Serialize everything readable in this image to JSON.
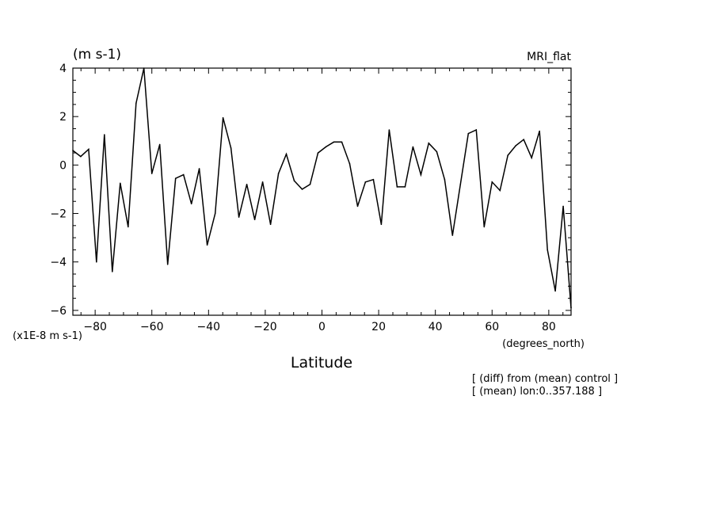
{
  "chart_data": {
    "type": "line",
    "title": "",
    "model_label": "MRI_flat",
    "ylabel_unit": "(m s-1)",
    "y_scale_note": "(x1E-8 m s-1)",
    "xlabel": "Latitude",
    "x_unit": "(degrees_north)",
    "annotations": [
      "[ (diff) from (mean) control ]",
      "[ (mean) lon:0..357.188 ]"
    ],
    "xlim": [
      -87.86,
      87.86
    ],
    "ylim": [
      -6.2,
      4.0
    ],
    "x_ticks": [
      -80,
      -60,
      -40,
      -20,
      0,
      20,
      40,
      60,
      80
    ],
    "x_tick_labels": [
      "−80",
      "−60",
      "−40",
      "−20",
      "0",
      "20",
      "40",
      "60",
      "80"
    ],
    "y_ticks": [
      -6,
      -4,
      -2,
      0,
      2,
      4
    ],
    "y_tick_labels": [
      "−6",
      "−4",
      "−2",
      "0",
      "2",
      "4"
    ],
    "grid": false,
    "series": [
      {
        "x": [
          -87.86,
          -85.1,
          -82.31,
          -79.53,
          -76.74,
          -73.95,
          -71.16,
          -68.37,
          -65.58,
          -62.79,
          -60.0,
          -57.21,
          -54.42,
          -51.63,
          -48.84,
          -46.05,
          -43.26,
          -40.47,
          -37.67,
          -34.88,
          -32.09,
          -29.3,
          -26.51,
          -23.72,
          -20.93,
          -18.14,
          -15.35,
          -12.56,
          -9.77,
          -6.98,
          -4.19,
          -1.4,
          1.4,
          4.19,
          6.98,
          9.77,
          12.56,
          15.35,
          18.14,
          20.93,
          23.72,
          26.51,
          29.3,
          32.09,
          34.88,
          37.67,
          40.47,
          43.26,
          46.05,
          48.84,
          51.63,
          54.42,
          57.21,
          60.0,
          62.79,
          65.58,
          68.37,
          71.16,
          73.95,
          76.74,
          79.53,
          82.31,
          85.1,
          87.86
        ],
        "y": [
          0.6,
          0.35,
          0.65,
          -4.0,
          1.25,
          -4.4,
          -0.75,
          -2.55,
          2.55,
          4.0,
          -0.35,
          0.85,
          -4.1,
          -0.55,
          -0.4,
          -1.6,
          -0.15,
          -3.3,
          -2.0,
          1.95,
          0.7,
          -2.15,
          -0.8,
          -2.25,
          -0.7,
          -2.45,
          -0.35,
          0.45,
          -0.65,
          -1.0,
          -0.8,
          0.5,
          0.75,
          0.95,
          0.95,
          0.05,
          -1.7,
          -0.7,
          -0.6,
          -2.45,
          1.45,
          -0.9,
          -0.9,
          0.75,
          -0.4,
          0.9,
          0.55,
          -0.6,
          -2.9,
          -0.8,
          1.3,
          1.45,
          -2.55,
          -0.7,
          -1.05,
          0.4,
          0.8,
          1.05,
          0.3,
          1.4,
          -3.5,
          -5.2,
          -1.7,
          -5.9
        ]
      }
    ]
  }
}
